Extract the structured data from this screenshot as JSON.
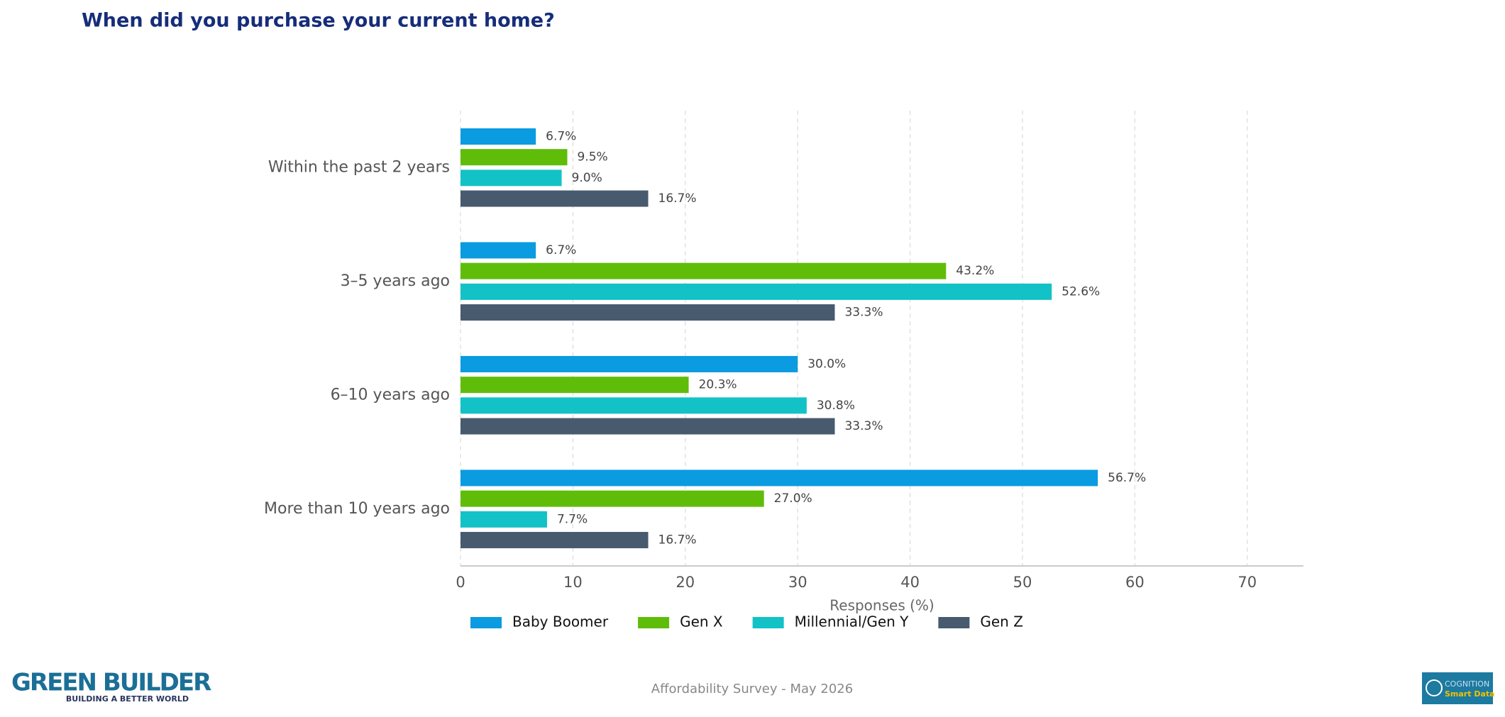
{
  "chart_data": {
    "type": "bar",
    "orientation": "horizontal",
    "title": "When did you purchase your current home?",
    "xlabel": "Responses (%)",
    "categories": [
      "Within the past 2 years",
      "3–5 years ago",
      "6–10 years ago",
      "More than 10 years ago"
    ],
    "series": [
      {
        "name": "Baby Boomer",
        "color": "#0a9be0",
        "values": [
          6.7,
          6.7,
          30.0,
          56.7
        ],
        "value_labels": [
          "6.7%",
          "6.7%",
          "30.0%",
          "56.7%"
        ]
      },
      {
        "name": "Gen X",
        "color": "#5fbd0a",
        "values": [
          9.5,
          43.2,
          20.3,
          27.0
        ],
        "value_labels": [
          "9.5%",
          "43.2%",
          "20.3%",
          "27.0%"
        ]
      },
      {
        "name": "Millennial/Gen Y",
        "color": "#12c2c6",
        "values": [
          9.0,
          52.6,
          30.8,
          7.7
        ],
        "value_labels": [
          "9.0%",
          "52.6%",
          "30.8%",
          "7.7%"
        ]
      },
      {
        "name": "Gen Z",
        "color": "#485a6e",
        "values": [
          16.7,
          33.3,
          33.3,
          16.7
        ],
        "value_labels": [
          "16.7%",
          "33.3%",
          "33.3%",
          "16.7%"
        ]
      }
    ],
    "xlim": [
      0,
      75
    ],
    "xticks": [
      0,
      10,
      20,
      30,
      40,
      50,
      60,
      70
    ],
    "grid": true,
    "legend": "bottom"
  },
  "footer": {
    "source": "Affordability Survey - May 2026",
    "left_logo": {
      "name": "GREEN BUILDER",
      "tagline": "BUILDING A BETTER WORLD"
    },
    "right_logo": {
      "name": "COGNITION",
      "tagline": "Smart Data"
    }
  }
}
